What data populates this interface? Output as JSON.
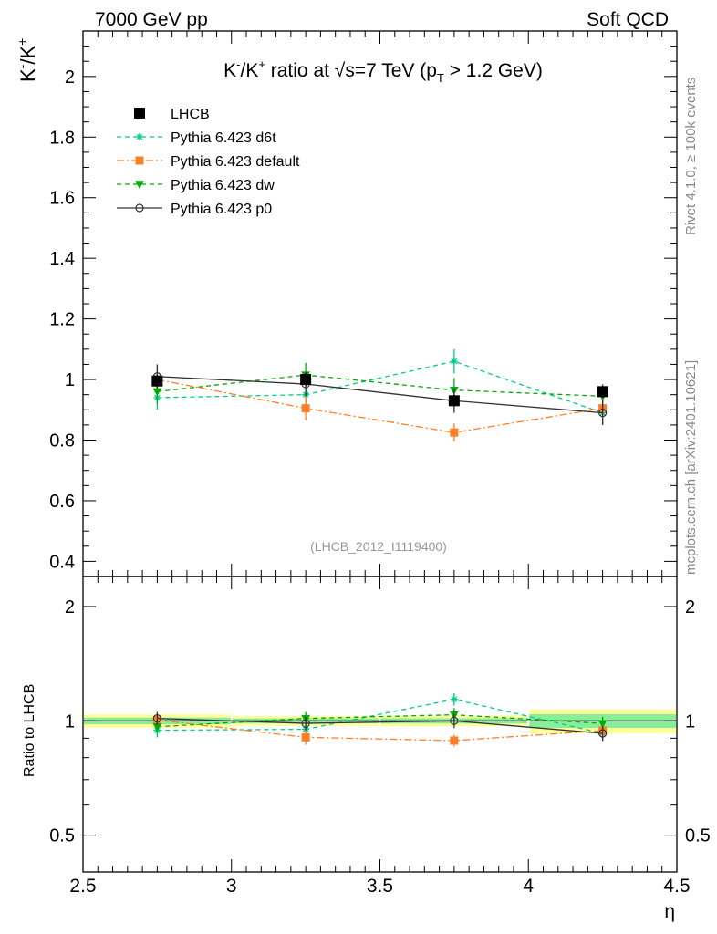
{
  "header": {
    "left": "7000 GeV pp",
    "right": "Soft QCD"
  },
  "side_labels": {
    "rivet": "Rivet 4.1.0, ≥ 100k events",
    "mcplots": "mcplots.cern.ch [arXiv:2401.10621]"
  },
  "chart_data": {
    "type": "scatter",
    "title": "K⁻/K⁺ ratio at √s=7 TeV (p_T > 1.2 GeV)",
    "title_parts": {
      "a": "K",
      "a_sup": "-",
      "b": "/K",
      "b_sup": "+",
      "c": " ratio at ",
      "sqrt": "√",
      "d": "s=7 TeV (p",
      "sub": "T",
      "e": " > 1.2 GeV)"
    },
    "ylabel_parts": {
      "a": "K",
      "a_sup": "-",
      "b": "/K",
      "b_sup": "+"
    },
    "xlabel": "η",
    "watermark": "(LHCB_2012_I1119400)",
    "ratio_ylabel": "Ratio to LHCB",
    "xlim": [
      2.5,
      4.5
    ],
    "ylim": [
      0.35,
      2.15
    ],
    "x_ticks": [
      "2.5",
      "3",
      "3.5",
      "4",
      "4.5"
    ],
    "y_ticks": [
      "0.4",
      "0.6",
      "0.8",
      "1",
      "1.2",
      "1.4",
      "1.6",
      "1.8",
      "2"
    ],
    "ratio_ylim": [
      0.4,
      2.4
    ],
    "ratio_ticks": [
      "0.5",
      "1",
      "2"
    ],
    "x_bins": [
      [
        2.5,
        3.0
      ],
      [
        3.0,
        3.5
      ],
      [
        3.5,
        4.0
      ],
      [
        4.0,
        4.5
      ]
    ],
    "x": [
      2.75,
      3.25,
      3.75,
      4.25
    ],
    "series": [
      {
        "name": "LHCB",
        "color": "#000000",
        "marker": "square",
        "dash": "",
        "values": [
          0.995,
          1.0,
          0.93,
          0.96
        ],
        "errors": [
          0.02,
          0.02,
          0.02,
          0.02
        ],
        "band_inner": [
          0.02,
          0.015,
          0.015,
          0.04
        ],
        "band_outer": [
          0.04,
          0.03,
          0.03,
          0.07
        ]
      },
      {
        "name": "Pythia 6.423 d6t",
        "color": "#00cc88",
        "marker": "star",
        "dash": "5,4",
        "values": [
          0.94,
          0.95,
          1.06,
          0.89
        ],
        "errors": [
          0.04,
          0.04,
          0.04,
          0.04
        ]
      },
      {
        "name": "Pythia 6.423 default",
        "color": "#ff7f27",
        "marker": "square",
        "dash": "8,3,2,3",
        "values": [
          1.0,
          0.905,
          0.825,
          0.905
        ],
        "errors": [
          0.04,
          0.04,
          0.03,
          0.05
        ]
      },
      {
        "name": "Pythia 6.423 dw",
        "color": "#00aa00",
        "marker": "triangle-down",
        "dash": "5,4",
        "values": [
          0.96,
          1.015,
          0.965,
          0.945
        ],
        "errors": [
          0.04,
          0.04,
          0.04,
          0.04
        ]
      },
      {
        "name": "Pythia 6.423 p0",
        "color": "#333333",
        "marker": "circle",
        "dash": "",
        "values": [
          1.01,
          0.985,
          0.93,
          0.89
        ],
        "errors": [
          0.04,
          0.04,
          0.04,
          0.04
        ]
      }
    ]
  }
}
